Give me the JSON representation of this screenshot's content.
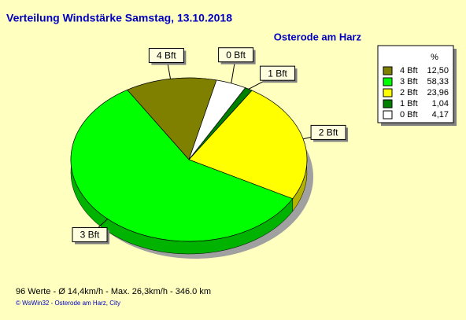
{
  "chart_data": {
    "type": "pie",
    "title": "Verteilung Windstärke  Samstag, 13.10.2018",
    "subtitle": "Osterode am Harz",
    "categories": [
      "4 Bft",
      "3 Bft",
      "2 Bft",
      "1 Bft",
      "0 Bft"
    ],
    "values": [
      12.5,
      58.33,
      23.96,
      1.04,
      4.17
    ],
    "value_labels": [
      "12,50",
      "58,33",
      "23,96",
      "1,04",
      "4,17"
    ],
    "colors": [
      "#808000",
      "#00ff00",
      "#ffff00",
      "#008000",
      "#ffffff"
    ],
    "legend_title": "%",
    "legend": "top-right",
    "footer": "96 Werte   -   Ø 14,4km/h  -  Max. 26,3km/h  -   346.0 km",
    "credit": "© WsWin32  -  Osterode am Harz, City"
  }
}
